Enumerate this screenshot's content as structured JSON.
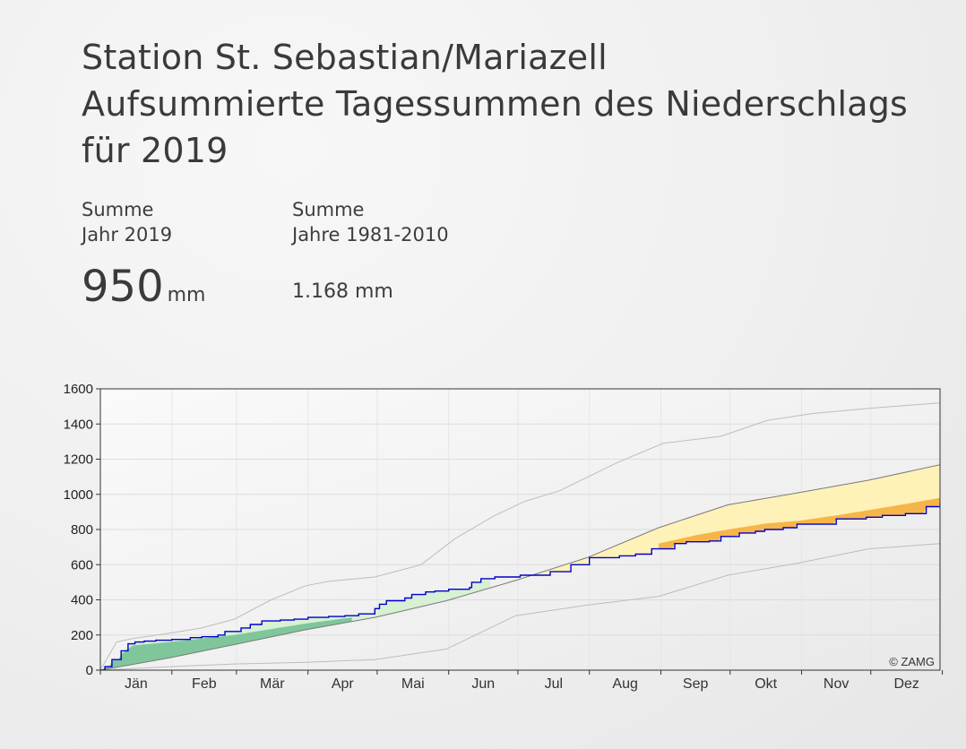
{
  "title": {
    "line1": "Station St. Sebastian/Mariazell",
    "line2": "Aufsummierte Tagessummen des Niederschlags",
    "line3": "für 2019"
  },
  "stats": {
    "year": {
      "label1": "Summe",
      "label2": "Jahr 2019",
      "value": "950",
      "unit": "mm"
    },
    "normal": {
      "label1": "Summe",
      "label2": "Jahre 1981-2010",
      "value": "1.168 mm"
    }
  },
  "copyright": "© ZAMG",
  "colors": {
    "series_2019": "#0000cc",
    "normal_line": "#7a7a7a",
    "envelope": "#bdbdbd",
    "above_light": "#d8f0d3",
    "above_dark": "#7fc79a",
    "below_light": "#fff2b8",
    "below_dark": "#f7b548"
  },
  "chart_data": {
    "type": "line",
    "title": "",
    "xlabel": "",
    "ylabel": "",
    "categories": [
      "Jän",
      "Feb",
      "Mär",
      "Apr",
      "Mai",
      "Jun",
      "Jul",
      "Aug",
      "Sep",
      "Okt",
      "Nov",
      "Dez"
    ],
    "x_unit": "day of year",
    "xlim": [
      1,
      365
    ],
    "ylim": [
      0,
      1600
    ],
    "yticks": [
      0,
      200,
      400,
      600,
      800,
      1000,
      1200,
      1400,
      1600
    ],
    "grid": true,
    "series": [
      {
        "key": "2019",
        "style": "step",
        "x": [
          1,
          3,
          6,
          10,
          13,
          16,
          20,
          25,
          32,
          40,
          45,
          52,
          55,
          62,
          66,
          71,
          79,
          85,
          91,
          100,
          107,
          113,
          120,
          122,
          125,
          133,
          136,
          142,
          146,
          152,
          161,
          162,
          166,
          172,
          183,
          196,
          205,
          213,
          226,
          233,
          240,
          250,
          255,
          265,
          270,
          278,
          285,
          289,
          297,
          303,
          320,
          333,
          340,
          350,
          359,
          365
        ],
        "y": [
          0,
          20,
          60,
          110,
          150,
          160,
          165,
          170,
          175,
          185,
          190,
          200,
          220,
          240,
          260,
          280,
          285,
          290,
          300,
          305,
          310,
          320,
          350,
          375,
          395,
          410,
          430,
          445,
          450,
          460,
          470,
          500,
          520,
          530,
          540,
          560,
          600,
          640,
          650,
          660,
          690,
          720,
          730,
          735,
          760,
          780,
          790,
          800,
          810,
          830,
          860,
          870,
          880,
          890,
          930,
          950
        ]
      },
      {
        "key": "mean_1981_2010",
        "x": [
          1,
          31,
          59,
          90,
          120,
          151,
          181,
          212,
          243,
          273,
          304,
          334,
          365
        ],
        "y": [
          0,
          70,
          145,
          230,
          300,
          395,
          510,
          640,
          810,
          940,
          1010,
          1080,
          1168
        ]
      },
      {
        "key": "max_envelope",
        "x": [
          1,
          8,
          15,
          31,
          45,
          59,
          75,
          90,
          100,
          120,
          140,
          155,
          172,
          185,
          200,
          225,
          245,
          270,
          290,
          310,
          335,
          350,
          365
        ],
        "y": [
          0,
          160,
          180,
          210,
          240,
          290,
          400,
          480,
          505,
          530,
          600,
          750,
          880,
          960,
          1020,
          1180,
          1290,
          1330,
          1420,
          1460,
          1490,
          1505,
          1520
        ]
      },
      {
        "key": "min_envelope",
        "x": [
          1,
          31,
          59,
          90,
          120,
          151,
          181,
          212,
          243,
          273,
          304,
          334,
          365
        ],
        "y": [
          0,
          20,
          35,
          45,
          60,
          120,
          310,
          370,
          420,
          540,
          610,
          690,
          720
        ]
      },
      {
        "key": "q75_above_normal",
        "x": [
          1,
          15,
          31,
          59,
          90,
          110
        ],
        "y": [
          0,
          140,
          160,
          200,
          265,
          300
        ]
      },
      {
        "key": "q25_below_normal",
        "x": [
          243,
          260,
          273,
          290,
          304,
          320,
          334,
          350,
          365
        ],
        "y": [
          720,
          770,
          800,
          835,
          850,
          880,
          910,
          945,
          980
        ]
      }
    ]
  }
}
